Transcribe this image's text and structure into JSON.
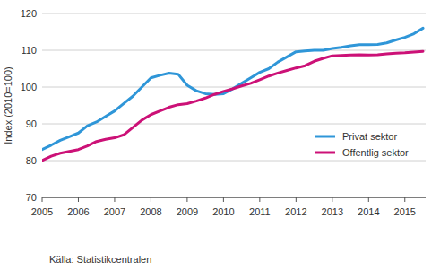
{
  "chart_data": {
    "type": "line",
    "ylabel": "Index (2010=100)",
    "source": "Källa: Statistikcentralen",
    "categories": [
      "2005",
      null,
      null,
      null,
      "2006",
      null,
      null,
      null,
      "2007",
      null,
      null,
      null,
      "2008",
      null,
      null,
      null,
      "2009",
      null,
      null,
      null,
      "2010",
      null,
      null,
      null,
      "2011",
      null,
      null,
      null,
      "2012",
      null,
      null,
      null,
      "2013",
      null,
      null,
      null,
      "2014",
      null,
      null,
      null,
      "2015",
      null,
      null
    ],
    "series": [
      {
        "name": "Privat sektor",
        "color": "#2f96d8",
        "values": [
          83,
          84.2,
          85.5,
          86.5,
          87.5,
          89.5,
          90.5,
          92,
          93.5,
          95.5,
          97.5,
          100,
          102.5,
          103.2,
          103.8,
          103.5,
          100.5,
          99,
          98.2,
          98,
          98.2,
          99.5,
          101,
          102.5,
          104,
          105,
          106.8,
          108.2,
          109.6,
          109.8,
          110,
          110,
          110.5,
          110.8,
          111.2,
          111.5,
          111.5,
          111.6,
          112,
          112.8,
          113.5,
          114.5,
          116
        ]
      },
      {
        "name": "Offentlig sektor",
        "color": "#cc1177",
        "values": [
          80,
          81.2,
          82,
          82.5,
          83,
          84,
          85.2,
          85.8,
          86.2,
          87,
          89,
          91,
          92.5,
          93.5,
          94.5,
          95.2,
          95.5,
          96.2,
          97,
          98,
          98.8,
          99.5,
          100.3,
          101,
          102,
          103,
          103.8,
          104.5,
          105.2,
          105.8,
          107,
          107.8,
          108.5,
          108.6,
          108.7,
          108.8,
          108.7,
          108.8,
          109,
          109.2,
          109.3,
          109.5,
          109.7
        ]
      }
    ],
    "ylim": [
      70,
      120
    ],
    "yticks": [
      70,
      80,
      90,
      100,
      110,
      120
    ],
    "grid": true,
    "legend": "right"
  }
}
